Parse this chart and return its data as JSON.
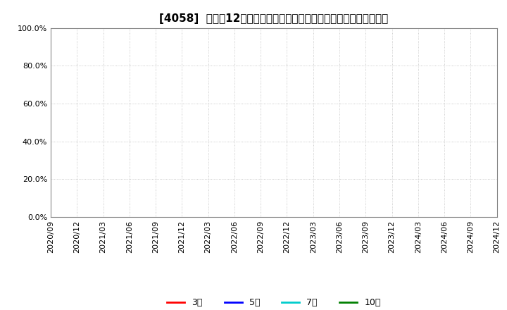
{
  "title": "[4058]  売上高12か月移動合計の対前年同期増減率の標準偏差の推移",
  "ylim": [
    0.0,
    1.0
  ],
  "yticks": [
    0.0,
    0.2,
    0.4,
    0.6,
    0.8,
    1.0
  ],
  "ytick_labels": [
    "0.0%",
    "20.0%",
    "40.0%",
    "60.0%",
    "80.0%",
    "100.0%"
  ],
  "x_tick_labels": [
    "2020/09",
    "2020/12",
    "2021/03",
    "2021/06",
    "2021/09",
    "2021/12",
    "2022/03",
    "2022/06",
    "2022/09",
    "2022/12",
    "2023/03",
    "2023/06",
    "2023/09",
    "2023/12",
    "2024/03",
    "2024/06",
    "2024/09",
    "2024/12"
  ],
  "legend_entries": [
    "3年",
    "5年",
    "7年",
    "10年"
  ],
  "legend_colors": [
    "#ff0000",
    "#0000ff",
    "#00cccc",
    "#008000"
  ],
  "background_color": "#ffffff",
  "grid_color": "#bbbbbb",
  "title_fontsize": 11,
  "axis_label_fontsize": 8,
  "legend_fontsize": 9
}
